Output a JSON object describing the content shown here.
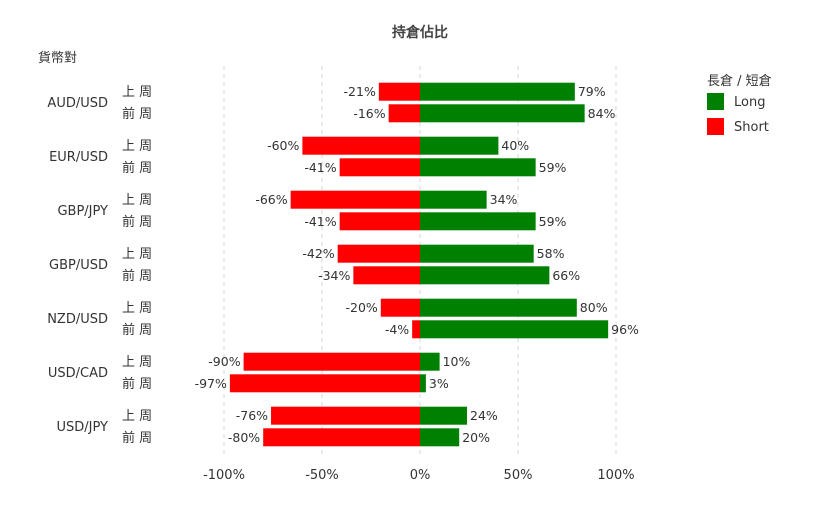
{
  "chart_data": {
    "type": "bar",
    "orientation": "horizontal",
    "stacked": "diverging",
    "title": "持倉佔比",
    "ylabel": "貨幣對",
    "xlim": [
      -100,
      100
    ],
    "x_ticks": [
      -100,
      -50,
      0,
      50,
      100
    ],
    "x_tick_labels": [
      "-100%",
      "-50%",
      "0%",
      "50%",
      "100%"
    ],
    "grid": true,
    "legend_title": "長倉 / 短倉",
    "legend_position": "top-right",
    "categories": [
      "AUD/USD",
      "EUR/USD",
      "GBP/JPY",
      "GBP/USD",
      "NZD/USD",
      "USD/CAD",
      "USD/JPY"
    ],
    "sub_categories": [
      "上 周",
      "前 周"
    ],
    "series": [
      {
        "name": "Long",
        "color": "#008000",
        "values": [
          [
            79,
            84
          ],
          [
            40,
            59
          ],
          [
            34,
            59
          ],
          [
            58,
            66
          ],
          [
            80,
            96
          ],
          [
            10,
            3
          ],
          [
            24,
            20
          ]
        ],
        "labels": [
          [
            "79%",
            "84%"
          ],
          [
            "40%",
            "59%"
          ],
          [
            "34%",
            "59%"
          ],
          [
            "58%",
            "66%"
          ],
          [
            "80%",
            "96%"
          ],
          [
            "10%",
            "3%"
          ],
          [
            "24%",
            "20%"
          ]
        ]
      },
      {
        "name": "Short",
        "color": "#ff0000",
        "values": [
          [
            -21,
            -16
          ],
          [
            -60,
            -41
          ],
          [
            -66,
            -41
          ],
          [
            -42,
            -34
          ],
          [
            -20,
            -4
          ],
          [
            -90,
            -97
          ],
          [
            -76,
            -80
          ]
        ],
        "labels": [
          [
            "-21%",
            "-16%"
          ],
          [
            "-60%",
            "-41%"
          ],
          [
            "-66%",
            "-41%"
          ],
          [
            "-42%",
            "-34%"
          ],
          [
            "-20%",
            "-4%"
          ],
          [
            "-90%",
            "-97%"
          ],
          [
            "-76%",
            "-80%"
          ]
        ]
      }
    ]
  }
}
